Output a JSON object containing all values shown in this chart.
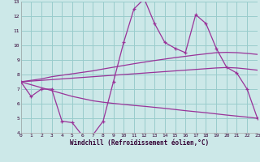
{
  "xlabel": "Windchill (Refroidissement éolien,°C)",
  "bg_color": "#cce8e8",
  "grid_color": "#99cccc",
  "line_color": "#993399",
  "xlim": [
    0,
    23
  ],
  "ylim": [
    4,
    13
  ],
  "xticks": [
    0,
    1,
    2,
    3,
    4,
    5,
    6,
    7,
    8,
    9,
    10,
    11,
    12,
    13,
    14,
    15,
    16,
    17,
    18,
    19,
    20,
    21,
    22,
    23
  ],
  "yticks": [
    4,
    5,
    6,
    7,
    8,
    9,
    10,
    11,
    12,
    13
  ],
  "jagged_x": [
    0,
    1,
    2,
    3,
    4,
    5,
    6,
    7,
    8,
    9,
    10,
    11,
    12,
    13,
    14,
    15,
    16,
    17,
    18,
    19,
    20,
    21,
    22,
    23
  ],
  "jagged_y": [
    7.5,
    6.5,
    7.0,
    7.0,
    4.8,
    4.7,
    3.8,
    3.85,
    4.8,
    7.5,
    10.2,
    12.5,
    13.2,
    11.5,
    10.2,
    9.8,
    9.5,
    12.1,
    11.5,
    9.8,
    8.5,
    8.1,
    7.0,
    5.0
  ],
  "smooth1_x": [
    0,
    1,
    2,
    3,
    4,
    5,
    6,
    7,
    8,
    9,
    10,
    11,
    12,
    13,
    14,
    15,
    16,
    17,
    18,
    19,
    20,
    21,
    22,
    23
  ],
  "smooth1_y": [
    7.5,
    7.6,
    7.7,
    7.85,
    7.95,
    8.05,
    8.15,
    8.25,
    8.38,
    8.5,
    8.62,
    8.74,
    8.85,
    8.96,
    9.06,
    9.16,
    9.25,
    9.34,
    9.42,
    9.5,
    9.52,
    9.5,
    9.45,
    9.38
  ],
  "smooth2_x": [
    0,
    1,
    2,
    3,
    4,
    5,
    6,
    7,
    8,
    9,
    10,
    11,
    12,
    13,
    14,
    15,
    16,
    17,
    18,
    19,
    20,
    21,
    22,
    23
  ],
  "smooth2_y": [
    7.5,
    7.55,
    7.6,
    7.65,
    7.7,
    7.75,
    7.8,
    7.85,
    7.9,
    7.95,
    8.0,
    8.05,
    8.1,
    8.15,
    8.2,
    8.25,
    8.3,
    8.35,
    8.4,
    8.45,
    8.48,
    8.45,
    8.38,
    8.3
  ],
  "smooth3_x": [
    0,
    1,
    2,
    3,
    4,
    5,
    6,
    7,
    8,
    9,
    10,
    11,
    12,
    13,
    14,
    15,
    16,
    17,
    18,
    19,
    20,
    21,
    22,
    23
  ],
  "smooth3_y": [
    7.5,
    7.3,
    7.1,
    6.9,
    6.7,
    6.5,
    6.35,
    6.2,
    6.1,
    6.02,
    5.95,
    5.88,
    5.82,
    5.75,
    5.68,
    5.6,
    5.52,
    5.45,
    5.38,
    5.3,
    5.22,
    5.15,
    5.08,
    5.0
  ]
}
